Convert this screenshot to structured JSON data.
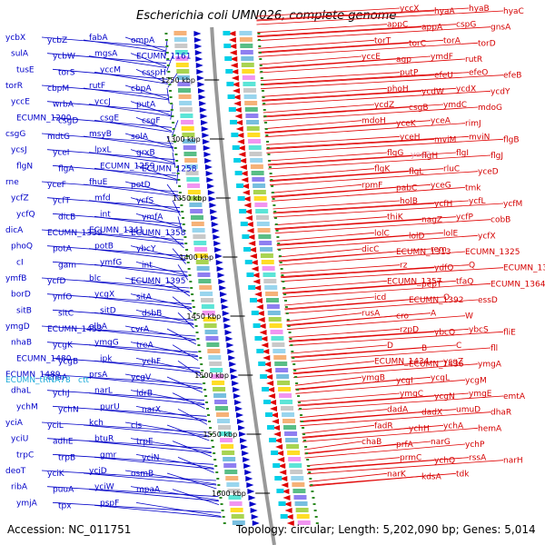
{
  "title": "Escherichia coli UMN026, complete genome",
  "footer": {
    "accession": "Accession: NC_011751",
    "summary": "Topology: circular; Length: 5,202,090 bp; Genes: 5,014"
  },
  "colors": {
    "forward_strand": "#0000c8",
    "reverse_strand": "#e00000",
    "trna": "#19a9d8",
    "backbone": "#999999",
    "tick_marks": "#2e8b22"
  },
  "position_ticks": [
    "1250 kbp",
    "1300 kbp",
    "1350 kbp",
    "1400 kbp",
    "1450 kbp",
    "1500 kbp",
    "1550 kbp",
    "1600 kbp"
  ],
  "left_genes": [
    "ycbX",
    "ycbZ",
    "fabA",
    "ompA",
    "sulA",
    "ycbW",
    "mgsA",
    "ECUMN_1161",
    "tusE",
    "torS",
    "yccM",
    "csspH",
    "torR",
    "cbpM",
    "rutF",
    "cbpA",
    "yccE",
    "wrbA",
    "yccJ",
    "putA",
    "ECUMN_1200",
    "csgD",
    "csgE",
    "csgF",
    "csgG",
    "mdtG",
    "msyB",
    "solA",
    "ycsJ",
    "yceI",
    "lpxL",
    "grxB",
    "flgN",
    "flgA",
    "ECUMN_1259",
    "ECUMN_1258",
    "rne",
    "yceF",
    "fhuE",
    "potD",
    "ycfZ",
    "ycfT",
    "mfd",
    "ycfS",
    "ycfQ",
    "dicB",
    "int",
    "ymfA",
    "dicA",
    "ECUMN_1339",
    "ECUMN_1341",
    "ECUMN_1358",
    "phoQ",
    "potA",
    "potB",
    "ybcY",
    "cI",
    "gam",
    "ymfG",
    "int",
    "ymfB",
    "ycfD",
    "blc",
    "ECUMN_1395",
    "borD",
    "ynfO",
    "ycgX",
    "sitA",
    "sitB",
    "sitC",
    "sitD",
    "dsbB",
    "ymgD",
    "ECUMN_1453",
    "elbA",
    "cvrA",
    "nhaB",
    "ycgK",
    "ymgG",
    "treA",
    "ECUMN_1480",
    "ycgB",
    "ipk",
    "ychF",
    "ECUMN_1489",
    "chaA",
    "prsA",
    "ycgV",
    "dhaL",
    "ychJ",
    "narL",
    "ldrB",
    "ychM",
    "ychN",
    "purU",
    "narX",
    "yciA",
    "yciL",
    "kch",
    "cls",
    "yciU",
    "adhE",
    "btuR",
    "trpE",
    "trpC",
    "trpB",
    "gmr",
    "yciN",
    "deoT",
    "yciK",
    "ycjD",
    "osmB",
    "ribA",
    "puuA",
    "yciW",
    "mpaA",
    "ymjA",
    "tpx",
    "pspF"
  ],
  "trna_genes": [
    "ECUMN_tRNA78",
    "ctt"
  ],
  "right_genes": [
    "yccX",
    "hyaA",
    "hyaB",
    "hyaC",
    "appC",
    "appA",
    "cspG",
    "gnsA",
    "torT",
    "torC",
    "torA",
    "torD",
    "yccE",
    "agp",
    "ymdF",
    "rutR",
    "putP",
    "efeU",
    "efeO",
    "efeB",
    "phoH",
    "ycdW",
    "ycdX",
    "ycdY",
    "ycdZ",
    "csgB",
    "ymdC",
    "mdoG",
    "mdoH",
    "yceK",
    "yceA",
    "rimJ",
    "yceH",
    "mviM",
    "mviN",
    "flgB",
    "flgG",
    "flgH",
    "flgI",
    "flgJ",
    "flgK",
    "flgL",
    "rluC",
    "yceD",
    "rpmF",
    "pabC",
    "yceG",
    "tmk",
    "holB",
    "ycfH",
    "ycfL",
    "ycfM",
    "thiK",
    "nagZ",
    "ycfP",
    "cobB",
    "lolC",
    "lolD",
    "lolE",
    "ycfX",
    "dicC",
    "ECUMN_1313",
    "rem",
    "ECUMN_1325",
    "rz",
    "ydfQ",
    "Q",
    "ECUMN_1348",
    "ECUMN_1357",
    "pepT",
    "tfaQ",
    "ECUMN_1364",
    "icd",
    "ECUMN_1392",
    "O",
    "essD",
    "rusA",
    "cro",
    "A",
    "W",
    "rzpD",
    "ybcQ",
    "ybcS",
    "fliE",
    "D",
    "B",
    "C",
    "fll",
    "ECUMN_1434",
    "ECUMN_1436",
    "ycgZ",
    "ymgA",
    "ymgB",
    "ycgI",
    "ycgL",
    "ycgM",
    "ymgC",
    "ycgN",
    "ymgE",
    "emtA",
    "dadA",
    "dadX",
    "umuD",
    "dhaR",
    "fadR",
    "ychH",
    "ychA",
    "hemA",
    "chaB",
    "prfA",
    "narG",
    "ychP",
    "prmC",
    "ychQ",
    "rssA",
    "narH",
    "narK",
    "kdsA",
    "tdk"
  ],
  "faint_genes": [
    "yeaR"
  ]
}
